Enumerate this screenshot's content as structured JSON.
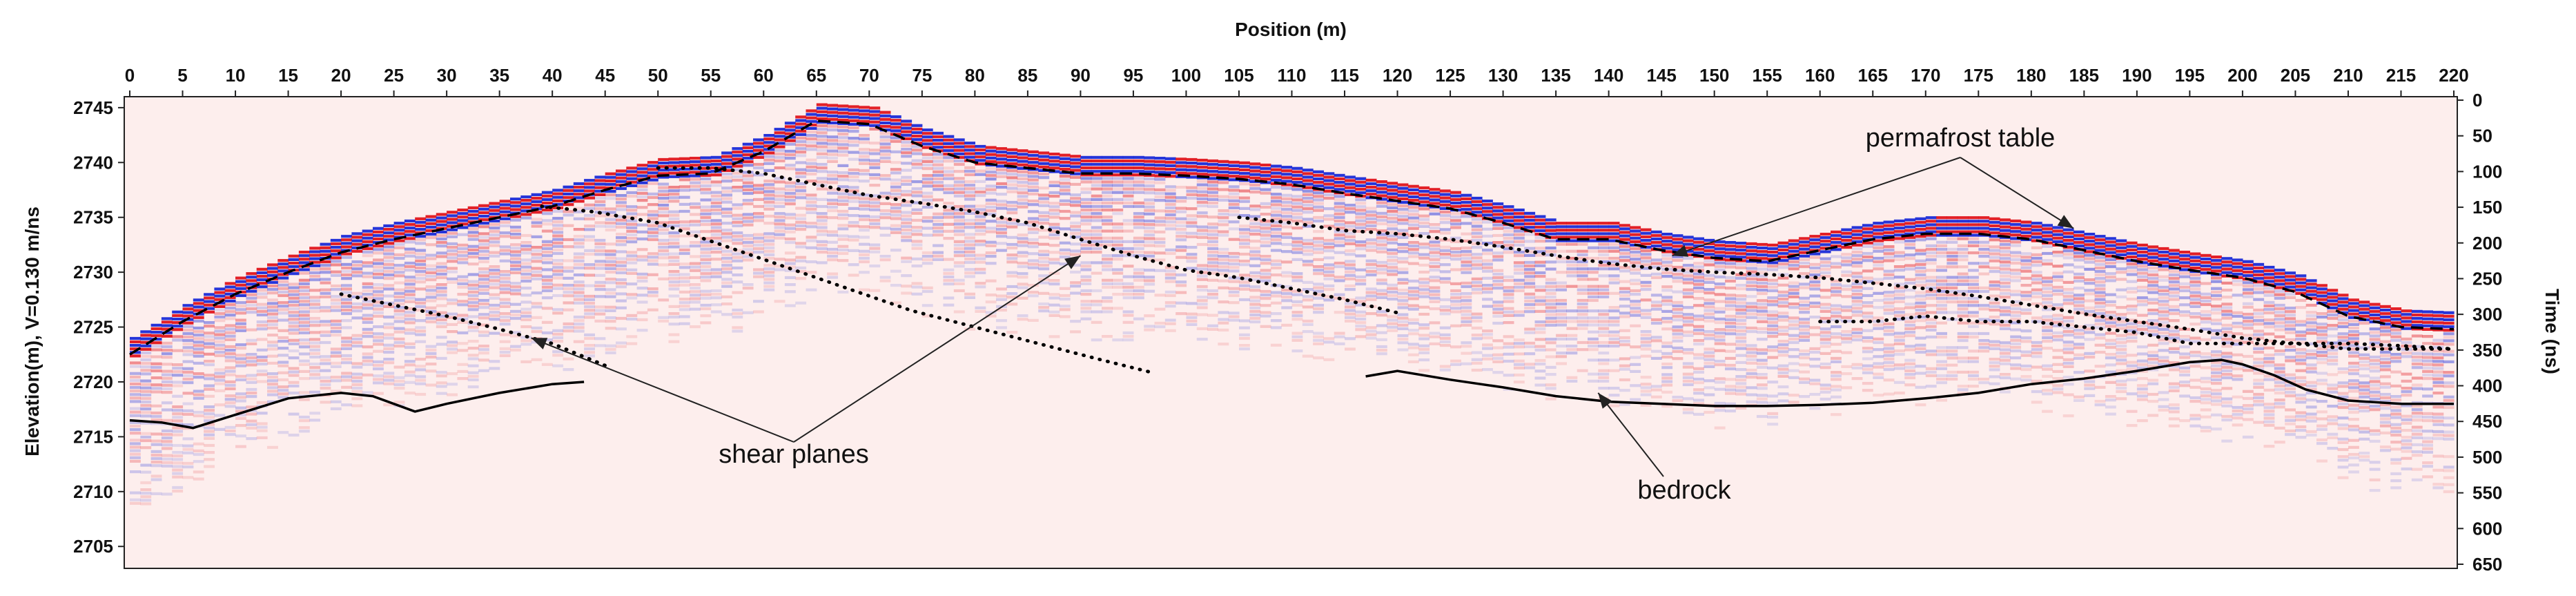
{
  "chart_data": {
    "type": "line",
    "title": "",
    "x_axis": {
      "label": "Position (m)",
      "position": "top",
      "range": [
        0,
        220
      ],
      "ticks": [
        0,
        5,
        10,
        15,
        20,
        25,
        30,
        35,
        40,
        45,
        50,
        55,
        60,
        65,
        70,
        75,
        80,
        85,
        90,
        95,
        100,
        105,
        110,
        115,
        120,
        125,
        130,
        135,
        140,
        145,
        150,
        155,
        160,
        165,
        170,
        175,
        180,
        185,
        190,
        195,
        200,
        205,
        210,
        215,
        220
      ]
    },
    "y_axis_left": {
      "label": "Elevation(m), V=0.130 m/ns",
      "range": [
        2703,
        2746
      ],
      "ticks": [
        2745,
        2740,
        2735,
        2730,
        2725,
        2720,
        2715,
        2710,
        2705
      ]
    },
    "y_axis_right": {
      "label": "Time (ns)",
      "range": [
        0,
        650
      ],
      "ticks": [
        0,
        50,
        100,
        150,
        200,
        250,
        300,
        350,
        400,
        450,
        500,
        550,
        600,
        650
      ]
    },
    "grid": false,
    "colormap": [
      "#1a2ad8",
      "#ffffff",
      "#e0141c"
    ],
    "series": [
      {
        "style": "dashed",
        "x": [
          0,
          5,
          10,
          15,
          20,
          25,
          30,
          35,
          40,
          45,
          50,
          55,
          60,
          65,
          70,
          75,
          80,
          85,
          90,
          95,
          100,
          105,
          110,
          115,
          120,
          125,
          130,
          135,
          140,
          145,
          150,
          155,
          160,
          165,
          170,
          175,
          180,
          185,
          190,
          195,
          200,
          205,
          210,
          215,
          220
        ],
        "y": [
          2722.5,
          2725.5,
          2728,
          2730,
          2731.8,
          2733,
          2734,
          2735,
          2736,
          2737.5,
          2738.8,
          2739,
          2741,
          2743.8,
          2743.5,
          2741.5,
          2740,
          2739.5,
          2739,
          2739,
          2738.8,
          2738.5,
          2738,
          2737.2,
          2736.5,
          2735.8,
          2734.5,
          2733,
          2733,
          2732,
          2731.3,
          2731,
          2732,
          2733,
          2733.5,
          2733.5,
          2733,
          2732,
          2731,
          2730.2,
          2729.5,
          2728.2,
          2726,
          2725,
          2724.8
        ]
      },
      {
        "style": "dotted",
        "x": [
          39,
          44,
          50,
          56,
          62,
          68,
          74,
          80,
          86,
          92,
          97
        ],
        "y": [
          2736,
          2735.5,
          2734.5,
          2732.5,
          2730.5,
          2728.5,
          2726.5,
          2725,
          2723.5,
          2722,
          2720.8
        ]
      },
      {
        "style": "dotted",
        "x": [
          50,
          55,
          60,
          65,
          70,
          75,
          80,
          85,
          90,
          95,
          100,
          105,
          110,
          115,
          120
        ],
        "y": [
          2739.5,
          2739.5,
          2739,
          2738,
          2737,
          2736.3,
          2735.5,
          2734.5,
          2733,
          2731.5,
          2730.2,
          2729.5,
          2728.5,
          2727.5,
          2726.3
        ]
      },
      {
        "style": "dotted",
        "x": [
          105,
          110,
          115,
          120,
          125,
          130,
          135,
          140,
          145,
          150,
          155,
          160,
          165,
          170,
          175,
          180,
          185,
          190,
          195,
          200,
          205,
          210,
          215,
          220
        ],
        "y": [
          2735,
          2734.5,
          2733.8,
          2733.5,
          2733,
          2732.3,
          2731.5,
          2730.8,
          2730.3,
          2730,
          2729.8,
          2729.5,
          2729,
          2728.5,
          2727.8,
          2727,
          2726.2,
          2725.5,
          2724.8,
          2724,
          2723.5,
          2723,
          2723,
          2723
        ]
      },
      {
        "style": "dotted",
        "x": [
          20,
          25,
          30,
          35,
          40,
          45
        ],
        "y": [
          2728,
          2727,
          2726,
          2724.8,
          2723.5,
          2721.5
        ]
      },
      {
        "style": "dotted",
        "x": [
          160,
          165,
          170,
          175,
          180,
          185,
          190,
          195,
          200,
          205,
          210,
          215,
          220
        ],
        "y": [
          2725.5,
          2725.5,
          2726,
          2725.5,
          2725.5,
          2725,
          2724.5,
          2723.5,
          2723.5,
          2723.5,
          2723.5,
          2723.3,
          2723
        ]
      },
      {
        "style": "solid",
        "x": [
          0,
          3,
          6,
          10,
          15,
          20,
          23,
          27,
          30,
          35,
          40,
          43
        ],
        "y": [
          2716.5,
          2716.3,
          2715.8,
          2717,
          2718.5,
          2719,
          2718.7,
          2717.3,
          2718,
          2719,
          2719.8,
          2720
        ]
      },
      {
        "style": "solid",
        "x": [
          117,
          120,
          125,
          130,
          135,
          140,
          145,
          150,
          155,
          160,
          165,
          170,
          175,
          180,
          185,
          190,
          195,
          198,
          200,
          203,
          206,
          210,
          215,
          220
        ],
        "y": [
          2720.5,
          2721,
          2720.2,
          2719.5,
          2718.7,
          2718.2,
          2718,
          2717.8,
          2717.8,
          2717.9,
          2718.1,
          2718.5,
          2719,
          2719.8,
          2720.3,
          2721,
          2721.8,
          2722,
          2721.6,
          2720.6,
          2719.3,
          2718.3,
          2718,
          2718
        ]
      }
    ],
    "annotations": [
      {
        "text": "permafrost table",
        "arrow_to": [
          [
            146,
            2731.5
          ],
          [
            184,
            2734
          ]
        ]
      },
      {
        "text": "shear planes",
        "arrow_to": [
          [
            38,
            2724
          ],
          [
            90,
            2731.5
          ]
        ]
      },
      {
        "text": "bedrock",
        "arrow_to": [
          [
            139,
            2719
          ]
        ]
      }
    ]
  }
}
